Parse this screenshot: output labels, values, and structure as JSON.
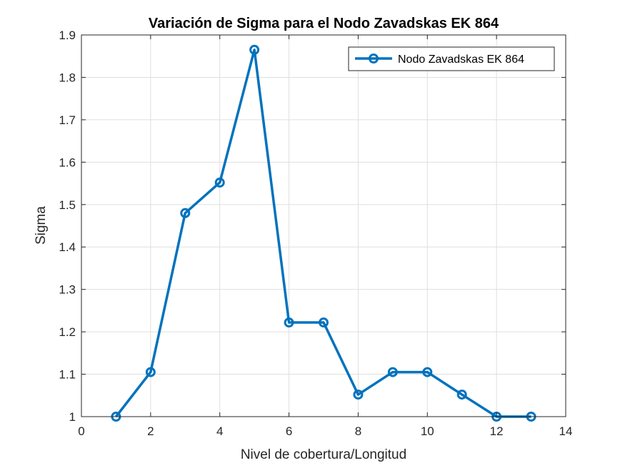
{
  "chart_data": {
    "type": "line",
    "title": "Variación de Sigma para el Nodo Zavadskas EK 864",
    "xlabel": "Nivel de cobertura/Longitud",
    "ylabel": "Sigma",
    "xlim": [
      0,
      14
    ],
    "ylim": [
      1,
      1.9
    ],
    "xticks": [
      0,
      2,
      4,
      6,
      8,
      10,
      12,
      14
    ],
    "yticks": [
      1,
      1.1,
      1.2,
      1.3,
      1.4,
      1.5,
      1.6,
      1.7,
      1.8,
      1.9
    ],
    "grid": true,
    "legend_position": "top-right",
    "series": [
      {
        "name": "Nodo Zavadskas EK 864",
        "color": "#0072BD",
        "marker": "circle",
        "x": [
          1,
          2,
          3,
          4,
          5,
          6,
          7,
          8,
          9,
          10,
          11,
          12,
          13
        ],
        "y": [
          1.0,
          1.105,
          1.48,
          1.552,
          1.865,
          1.222,
          1.222,
          1.052,
          1.105,
          1.105,
          1.052,
          1.0,
          1.0
        ]
      }
    ]
  }
}
